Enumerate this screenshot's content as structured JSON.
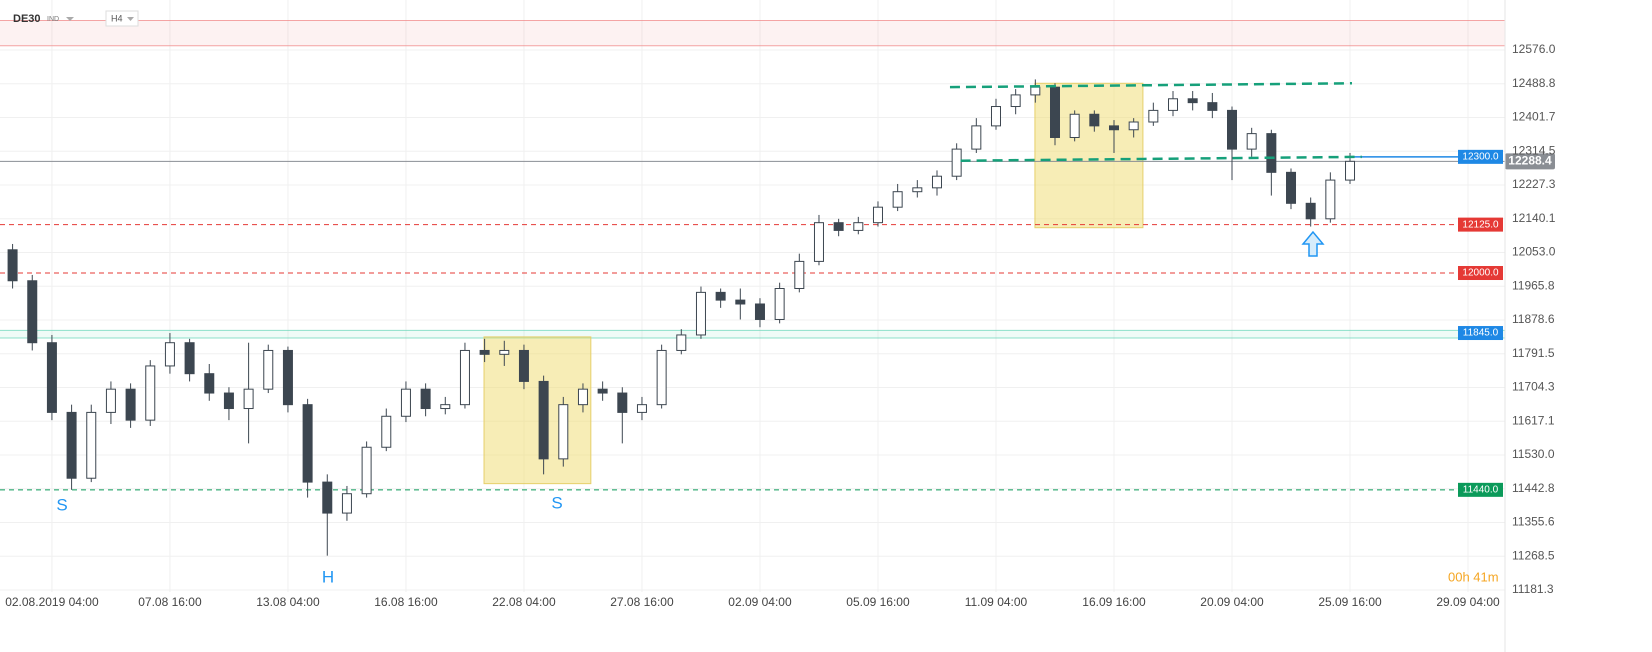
{
  "header": {
    "symbol": "DE30",
    "symbol_type": "IND",
    "timeframe": "H4"
  },
  "chart_data": {
    "type": "candlestick",
    "open": [
      12060,
      11980,
      11820,
      11640,
      11470,
      11640,
      11700,
      11620,
      11760,
      11820,
      11740,
      11690,
      11650,
      11700,
      11800,
      11660,
      11460,
      11380,
      11430,
      11550,
      11630,
      11700,
      11650,
      11660,
      11800,
      11790,
      11800,
      11720,
      11520,
      11660,
      11700,
      11690,
      11640,
      11660,
      11800,
      11840,
      11950,
      11930,
      11920,
      11880,
      11960,
      12030,
      12130,
      12110,
      12130,
      12170,
      12210,
      12220,
      12250,
      12320,
      12380,
      12430,
      12460,
      12480,
      12350,
      12410,
      12380,
      12370,
      12390,
      12420,
      12450,
      12440,
      12420,
      12320,
      12360,
      12260,
      12180,
      12140,
      12240
    ],
    "high": [
      12075,
      11995,
      11840,
      11660,
      11660,
      11720,
      11715,
      11775,
      11845,
      11830,
      11765,
      11705,
      11820,
      11815,
      11810,
      11675,
      11480,
      11450,
      11565,
      11650,
      11720,
      11715,
      11680,
      11820,
      11830,
      11825,
      11815,
      11735,
      11680,
      11715,
      11720,
      11705,
      11680,
      11815,
      11855,
      11965,
      11960,
      11960,
      11935,
      11975,
      12050,
      12150,
      12140,
      12145,
      12185,
      12230,
      12240,
      12265,
      12335,
      12400,
      12450,
      12475,
      12500,
      12490,
      12420,
      12420,
      12395,
      12400,
      12440,
      12470,
      12470,
      12465,
      12430,
      12375,
      12370,
      12270,
      12195,
      12260,
      12310
    ],
    "low": [
      11960,
      11800,
      11620,
      11440,
      11460,
      11610,
      11600,
      11605,
      11740,
      11720,
      11670,
      11620,
      11560,
      11690,
      11640,
      11420,
      11270,
      11360,
      11420,
      11540,
      11615,
      11630,
      11635,
      11650,
      11770,
      11760,
      11700,
      11480,
      11500,
      11640,
      11670,
      11560,
      11620,
      11650,
      11790,
      11830,
      11910,
      11880,
      11860,
      11870,
      11950,
      12020,
      12095,
      12100,
      12120,
      12160,
      12195,
      12200,
      12240,
      12310,
      12370,
      12410,
      12440,
      12330,
      12340,
      12365,
      12310,
      12350,
      12380,
      12405,
      12420,
      12400,
      12240,
      12300,
      12200,
      12165,
      12120,
      12130,
      12230
    ],
    "close": [
      11980,
      11820,
      11640,
      11470,
      11640,
      11700,
      11620,
      11760,
      11820,
      11740,
      11690,
      11650,
      11700,
      11800,
      11660,
      11460,
      11380,
      11430,
      11550,
      11630,
      11700,
      11650,
      11660,
      11800,
      11790,
      11800,
      11720,
      11520,
      11660,
      11700,
      11690,
      11640,
      11660,
      11800,
      11840,
      11950,
      11930,
      11920,
      11880,
      11960,
      12030,
      12130,
      12110,
      12130,
      12170,
      12210,
      12220,
      12250,
      12320,
      12380,
      12430,
      12460,
      12480,
      12350,
      12410,
      12380,
      12370,
      12390,
      12420,
      12450,
      12440,
      12420,
      12320,
      12360,
      12260,
      12180,
      12140,
      12240,
      12288.4
    ],
    "up_color": "#ffffff",
    "down_color": "#3c4650",
    "wick_color": "#3c4650",
    "xlim": [
      -0.64,
      75.88
    ],
    "xticks": [
      {
        "value": 2,
        "label": "02.08.2019 04:00"
      },
      {
        "value": 8,
        "label": "07.08 16:00"
      },
      {
        "value": 14,
        "label": "13.08 04:00"
      },
      {
        "value": 20,
        "label": "16.08 16:00"
      },
      {
        "value": 26,
        "label": "22.08 04:00"
      },
      {
        "value": 32,
        "label": "27.08 16:00"
      },
      {
        "value": 38,
        "label": "02.09 04:00"
      },
      {
        "value": 44,
        "label": "05.09 16:00"
      },
      {
        "value": 50,
        "label": "11.09 04:00"
      },
      {
        "value": 56,
        "label": "16.09 16:00"
      },
      {
        "value": 62,
        "label": "20.09 04:00"
      },
      {
        "value": 68,
        "label": "25.09 16:00"
      },
      {
        "value": 74,
        "label": "29.09 04:00"
      }
    ],
    "ylim": [
      11155.5,
      12705.1
    ],
    "yticks": [
      {
        "value": 12576,
        "label": "12576.0"
      },
      12488.8,
      12401.7,
      12314.5,
      12227.3,
      12140.1,
      {
        "value": 12053,
        "label": "12053.0"
      },
      11965.8,
      11878.6,
      11791.5,
      11704.3,
      11617.1,
      {
        "value": 11530,
        "label": "11530.0"
      },
      11442.8,
      11355.6,
      11268.5,
      11181.3
    ],
    "grid": true,
    "last_price": 12288.4,
    "last_price_color": "#8a8e94",
    "levels": [
      {
        "value": 12300,
        "label": "12300.0",
        "color": "#1e88e5",
        "style": "solid"
      },
      {
        "value": 12125,
        "label": "12125.0",
        "color": "#e53935",
        "style": "dashed"
      },
      {
        "value": 12000,
        "label": "12000.0",
        "color": "#e53935",
        "style": "dashed"
      },
      {
        "value": 11845,
        "label": "11845.0",
        "color": "#1e88e5",
        "style": "none"
      },
      {
        "value": 11440,
        "label": "11440.0",
        "color": "#0b9a5a",
        "style": "dashed"
      }
    ],
    "zones": [
      {
        "y": [
          12587,
          12652
        ],
        "color": "#f08080"
      },
      {
        "y": [
          11832,
          11852
        ],
        "color": "#5fd3b5"
      }
    ],
    "boxes": [
      {
        "x": [
          23.97,
          29.4
        ],
        "y": [
          11456,
          11835
        ]
      },
      {
        "x": [
          51.98,
          57.47
        ],
        "y": [
          12117,
          12490
        ]
      }
    ],
    "trend_lines": [
      {
        "x": [
          47.66,
          68.1
        ],
        "y": [
          12480,
          12490
        ]
      },
      {
        "x": [
          48.2,
          68.6
        ],
        "y": [
          12290,
          12300
        ]
      }
    ],
    "annotations": [
      "S",
      "S",
      "H"
    ],
    "countdown": "00h 41m"
  }
}
